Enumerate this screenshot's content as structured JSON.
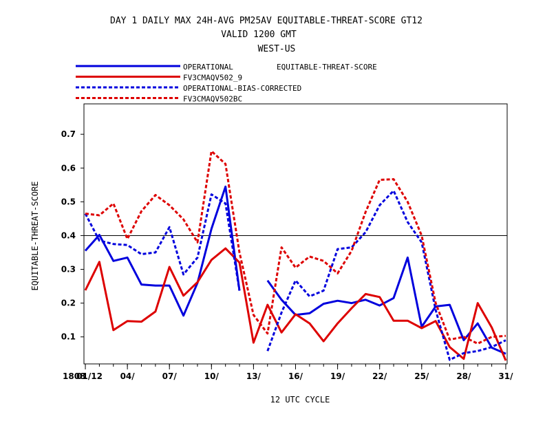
{
  "titles": {
    "line1": "DAY 1 DAILY MAX   24H-AVG PM25AV EQUITABLE-THREAT-SCORE GT12",
    "line2": "VALID 1200 GMT",
    "line3": "WEST-US"
  },
  "legend_metric_label": "EQUITABLE-THREAT-SCORE",
  "chart_data": {
    "type": "line",
    "xlabel": "12 UTC CYCLE",
    "ylabel": "EQUITABLE-THREAT-SCORE",
    "x": [
      1,
      2,
      3,
      4,
      5,
      6,
      7,
      8,
      9,
      10,
      11,
      12,
      13,
      14,
      15,
      16,
      17,
      18,
      19,
      20,
      21,
      22,
      23,
      24,
      25,
      26,
      27,
      28,
      29,
      30,
      31
    ],
    "xlim": [
      0.9,
      31.1
    ],
    "ylim": [
      0.02,
      0.79
    ],
    "yticks": [
      0.1,
      0.2,
      0.3,
      0.4,
      0.5,
      0.6,
      0.7
    ],
    "ytick_labels": [
      "0.1",
      "0.2",
      "0.3",
      "0.4",
      "0.5",
      "0.6",
      "0.7"
    ],
    "xticks": [
      {
        "x": 1,
        "label": "01/12"
      },
      {
        "x": 4,
        "label": "04/"
      },
      {
        "x": 7,
        "label": "07/"
      },
      {
        "x": 10,
        "label": "10/"
      },
      {
        "x": 13,
        "label": "13/"
      },
      {
        "x": 16,
        "label": "16/"
      },
      {
        "x": 19,
        "label": "19/"
      },
      {
        "x": 22,
        "label": "22/"
      },
      {
        "x": 25,
        "label": "25/"
      },
      {
        "x": 28,
        "label": "28/"
      },
      {
        "x": 31,
        "label": "31/"
      }
    ],
    "xtick_prefix_label": "1808",
    "reference_line_y": 0.4,
    "series": [
      {
        "name": "OPERATIONAL",
        "color": "#0000dd",
        "dash": false,
        "values": [
          0.355,
          0.402,
          0.325,
          0.335,
          0.255,
          0.252,
          0.252,
          0.163,
          0.26,
          0.42,
          0.545,
          0.237,
          null,
          0.267,
          0.21,
          0.165,
          0.17,
          0.198,
          0.207,
          0.2,
          0.21,
          0.193,
          0.215,
          0.335,
          0.13,
          0.19,
          0.195,
          0.09,
          0.14,
          0.068,
          0.05
        ]
      },
      {
        "name": "FV3CMAQV502_9",
        "color": "#dd0000",
        "dash": false,
        "values": [
          0.238,
          0.322,
          0.12,
          0.147,
          0.145,
          0.175,
          0.307,
          0.222,
          0.262,
          0.328,
          0.362,
          0.32,
          0.083,
          0.195,
          0.113,
          0.167,
          0.14,
          0.087,
          0.14,
          0.185,
          0.227,
          0.218,
          0.148,
          0.148,
          0.126,
          0.147,
          0.07,
          0.035,
          0.2,
          0.128,
          0.03
        ]
      },
      {
        "name": "OPERATIONAL-BIAS-CORRECTED",
        "color": "#0000dd",
        "dash": true,
        "values": [
          0.465,
          0.385,
          0.375,
          0.372,
          0.345,
          0.35,
          0.425,
          0.285,
          0.335,
          0.522,
          0.495,
          0.237,
          null,
          0.058,
          0.172,
          0.267,
          0.22,
          0.237,
          0.36,
          0.365,
          0.41,
          0.49,
          0.533,
          0.44,
          0.38,
          0.18,
          0.032,
          0.052,
          0.058,
          0.07,
          0.09
        ]
      },
      {
        "name": "FV3CMAQV502BC",
        "color": "#dd0000",
        "dash": true,
        "values": [
          0.465,
          0.46,
          0.495,
          0.39,
          0.472,
          0.52,
          0.49,
          0.448,
          0.38,
          0.65,
          0.612,
          0.35,
          0.165,
          0.11,
          0.365,
          0.305,
          0.338,
          0.325,
          0.288,
          0.355,
          0.47,
          0.565,
          0.567,
          0.5,
          0.4,
          0.2,
          0.092,
          0.1,
          0.08,
          0.1,
          0.103
        ]
      }
    ]
  }
}
